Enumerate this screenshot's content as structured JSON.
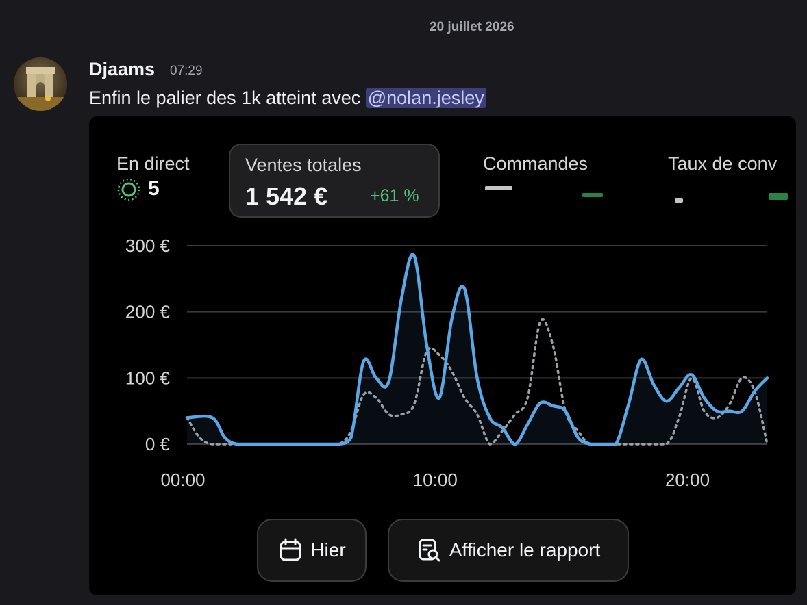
{
  "date_separator": "20 juillet 2026",
  "message": {
    "author": "Djaams",
    "time": "07:29",
    "text": "Enfin le palier des 1k atteint avec ",
    "mention": "@nolan.jesley"
  },
  "dashboard": {
    "stats": {
      "live": {
        "label": "En direct",
        "value": "5"
      },
      "sales": {
        "label": "Ventes totales",
        "value": "1 542 €",
        "delta": "+61 %"
      },
      "orders": {
        "label": "Commandes"
      },
      "conversion": {
        "label": "Taux de conv"
      }
    },
    "buttons": {
      "yesterday": "Hier",
      "report": "Afficher le rapport"
    },
    "colors": {
      "current": "#5aa7e6",
      "previous": "#9aa0a6",
      "positive": "#52c274"
    }
  },
  "chart_data": {
    "type": "line",
    "x_ticks": [
      "00:00",
      "10:00",
      "20:00"
    ],
    "y_ticks": [
      "0 €",
      "100 €",
      "200 €",
      "300 €"
    ],
    "ylim": [
      0,
      300
    ],
    "xlim": [
      0,
      23
    ],
    "grid": true,
    "series": [
      {
        "style": "solid",
        "x": [
          0,
          1,
          1.5,
          2,
          3,
          4,
          5,
          6,
          6.5,
          7,
          7.5,
          8,
          8.5,
          9,
          9.5,
          10,
          10.5,
          11,
          11.5,
          12,
          12.5,
          13,
          13.5,
          14,
          14.5,
          15,
          15.5,
          16,
          16.5,
          17,
          17.5,
          18,
          18.5,
          19,
          19.5,
          20,
          20.5,
          21,
          21.5,
          22,
          22.5,
          23
        ],
        "values": [
          40,
          40,
          10,
          0,
          0,
          0,
          0,
          0,
          10,
          125,
          100,
          95,
          220,
          285,
          150,
          70,
          190,
          235,
          100,
          40,
          25,
          0,
          30,
          62,
          58,
          50,
          10,
          0,
          0,
          0,
          60,
          128,
          90,
          65,
          85,
          105,
          70,
          50,
          50,
          50,
          80,
          100
        ]
      },
      {
        "style": "dotted",
        "x": [
          0,
          0.5,
          1,
          2,
          3,
          4,
          5,
          6,
          6.5,
          7,
          7.5,
          8,
          8.5,
          9,
          9.5,
          10,
          10.5,
          11,
          11.5,
          12,
          12.5,
          13,
          13.5,
          14,
          14.5,
          15,
          15.5,
          16,
          17,
          18,
          19,
          19.5,
          20,
          20.5,
          21,
          21.5,
          22,
          22.5,
          23
        ],
        "values": [
          40,
          10,
          0,
          0,
          0,
          0,
          0,
          0,
          20,
          75,
          70,
          45,
          45,
          60,
          140,
          135,
          110,
          70,
          45,
          0,
          20,
          45,
          70,
          185,
          150,
          50,
          20,
          0,
          0,
          0,
          0,
          40,
          100,
          50,
          40,
          60,
          100,
          80,
          0
        ]
      }
    ]
  }
}
